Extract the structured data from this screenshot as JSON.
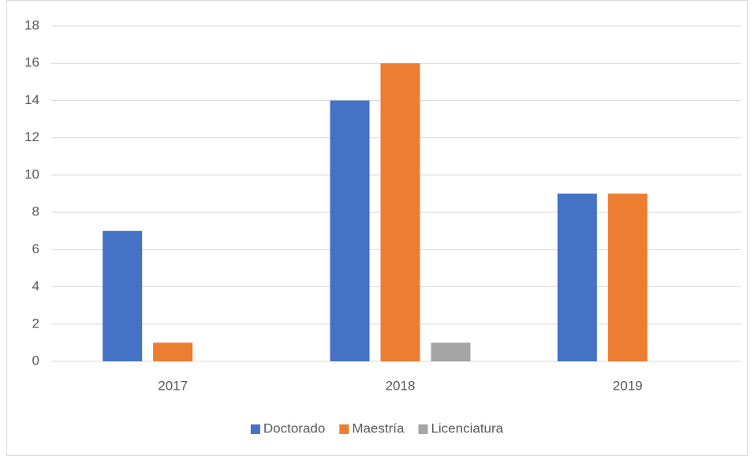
{
  "chart_data": {
    "type": "bar",
    "categories": [
      "2017",
      "2018",
      "2019"
    ],
    "series": [
      {
        "name": "Doctorado",
        "color": "#4472c4",
        "values": [
          7,
          14,
          9
        ]
      },
      {
        "name": "Maestría",
        "color": "#ed7d31",
        "values": [
          1,
          16,
          9
        ]
      },
      {
        "name": "Licenciatura",
        "color": "#a5a5a5",
        "values": [
          0,
          1,
          0
        ]
      }
    ],
    "ylim": [
      0,
      18
    ],
    "yticks": [
      0,
      2,
      4,
      6,
      8,
      10,
      12,
      14,
      16,
      18
    ],
    "grid": true,
    "legend": "bottom"
  }
}
